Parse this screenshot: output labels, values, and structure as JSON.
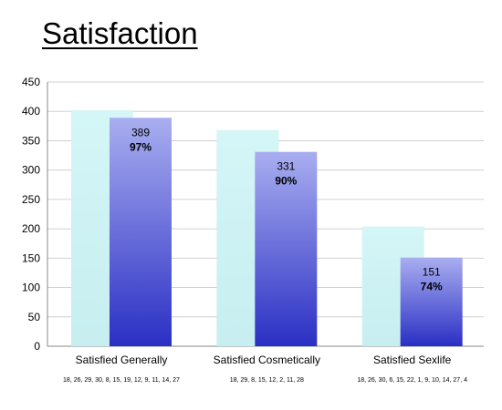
{
  "header": {
    "title": "Satisfaction"
  },
  "chart_data": {
    "type": "bar",
    "categories": [
      "Satisfied Generally",
      "Satisfied Cosmetically",
      "Satisfied Sexlife"
    ],
    "series": [
      {
        "values": [
          402,
          368,
          204
        ],
        "color": "#ccf2f3"
      },
      {
        "values": [
          389,
          331,
          151
        ],
        "color": "#4a4fd0",
        "labels": [
          "389",
          "331",
          "151"
        ],
        "percent_labels": [
          "97%",
          "90%",
          "74%"
        ]
      }
    ],
    "ylim": [
      0,
      450
    ],
    "yticks": [
      0,
      50,
      100,
      150,
      200,
      250,
      300,
      350,
      400,
      450
    ],
    "grid": true,
    "category_references": [
      "18, 26, 29, 30, 8, 15, 19, 12, 9, 11, 14, 27",
      "18, 29, 8, 15, 12, 2, 11, 28",
      "18, 26, 30, 6, 15, 22, 1, 9, 10, 14, 27, 4"
    ]
  }
}
